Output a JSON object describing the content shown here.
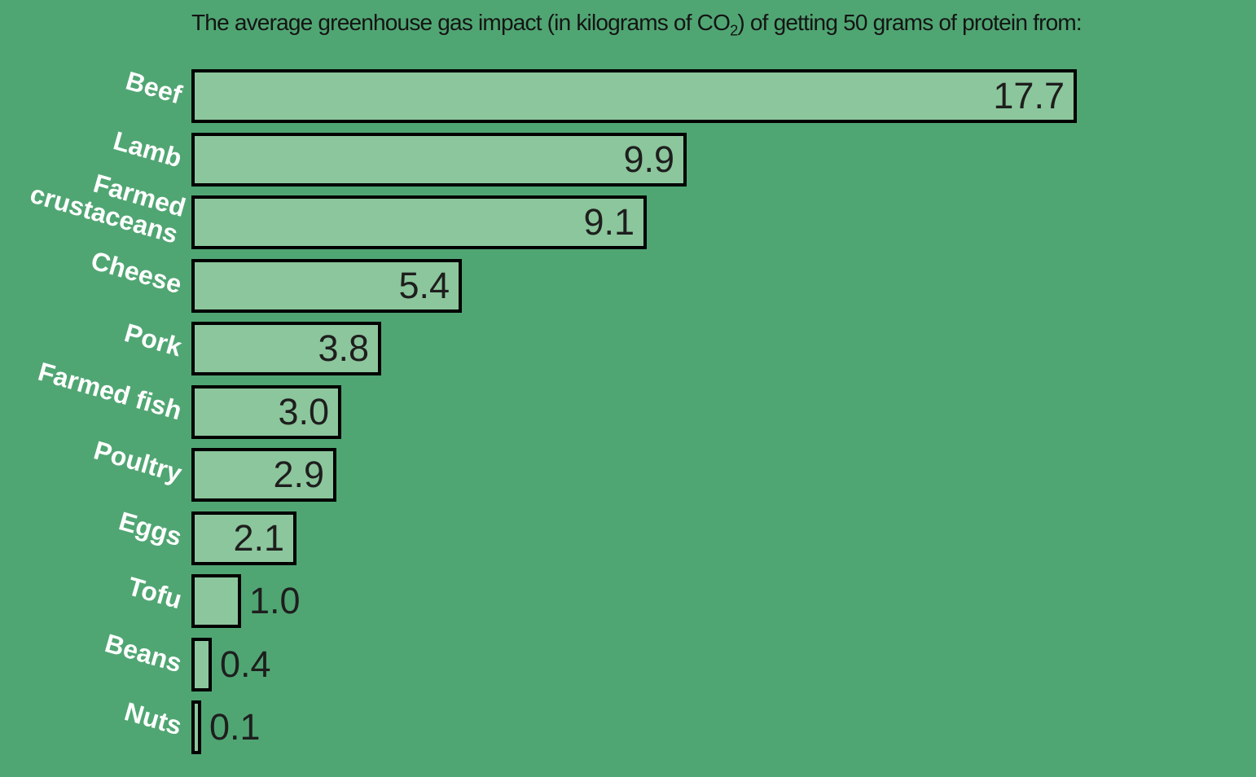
{
  "colors": {
    "background": "#50A673",
    "bar_fill": "#8CC69C",
    "bar_border": "#000000",
    "title_text": "#141414",
    "value_text": "#1E1E1E",
    "label_text": "#FFFFFF"
  },
  "chart_data": {
    "type": "bar",
    "orientation": "horizontal",
    "title": "The average greenhouse gas impact (in kilograms of CO₂) of getting 50 grams of protein from:",
    "title_parts": {
      "before_sub": "The average greenhouse gas impact (in kilograms of CO",
      "sub": "2",
      "after_sub": ") of getting 50 grams of protein from:"
    },
    "categories": [
      "Beef",
      "Lamb",
      "Farmed crustaceans",
      "Cheese",
      "Pork",
      "Farmed fish",
      "Poultry",
      "Eggs",
      "Tofu",
      "Beans",
      "Nuts"
    ],
    "label_lines": [
      [
        "Beef"
      ],
      [
        "Lamb"
      ],
      [
        "Farmed",
        "crustaceans"
      ],
      [
        "Cheese"
      ],
      [
        "Pork"
      ],
      [
        "Farmed fish"
      ],
      [
        "Poultry"
      ],
      [
        "Eggs"
      ],
      [
        "Tofu"
      ],
      [
        "Beans"
      ],
      [
        "Nuts"
      ]
    ],
    "values": [
      17.7,
      9.9,
      9.1,
      5.4,
      3.8,
      3.0,
      2.9,
      2.1,
      1.0,
      0.4,
      0.1
    ],
    "value_labels": [
      "17.7",
      "9.9",
      "9.1",
      "5.4",
      "3.8",
      "3.0",
      "2.9",
      "2.1",
      "1.0",
      "0.4",
      "0.1"
    ],
    "xlim": [
      0,
      17.7
    ],
    "grid": false,
    "legend_position": "none",
    "value_label_position": "end-of-bar"
  }
}
